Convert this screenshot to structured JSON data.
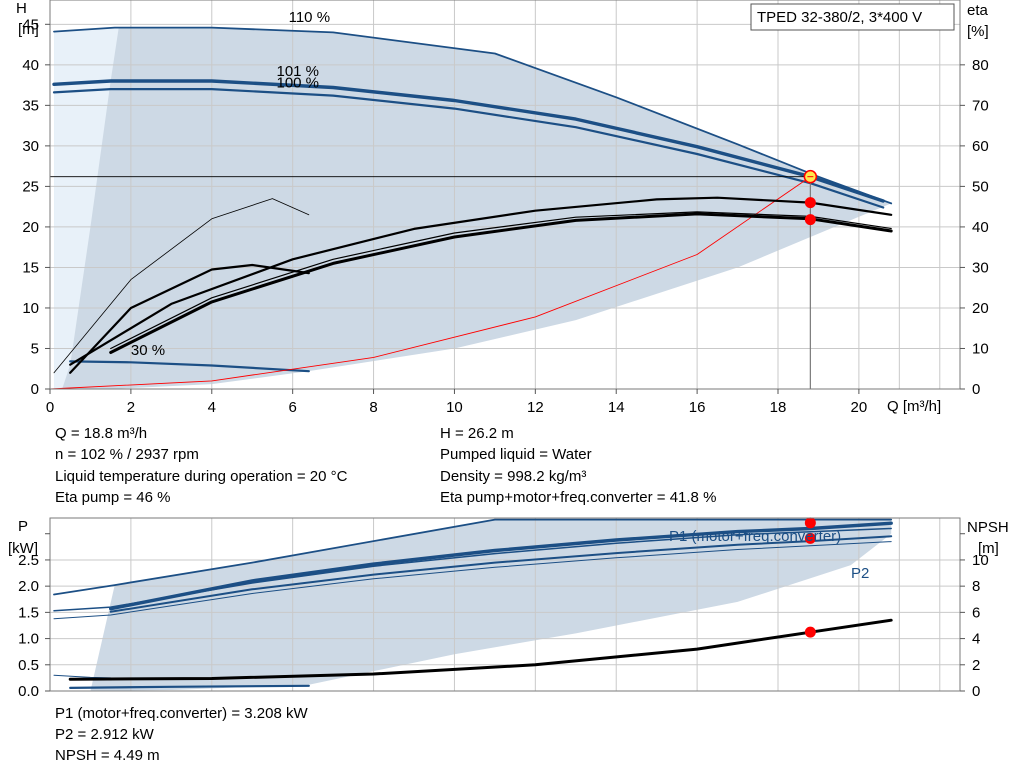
{
  "chart_data": [
    {
      "type": "line",
      "title": "TPED 32-380/2, 3*400 V",
      "xlabel": "Q [m³/h]",
      "ylabel_left": [
        "H",
        "[m]"
      ],
      "ylabel_right": [
        "eta",
        "[%]"
      ],
      "xlim": [
        0,
        22.5
      ],
      "ylim_left": [
        0,
        48
      ],
      "ylim_right": [
        0,
        96
      ],
      "xticks": [
        0,
        2,
        4,
        6,
        8,
        10,
        12,
        14,
        16,
        18,
        20
      ],
      "yticks_left": [
        0,
        5,
        10,
        15,
        20,
        25,
        30,
        35,
        40,
        45
      ],
      "yticks_right": [
        0,
        10,
        20,
        30,
        40,
        50,
        60,
        70,
        80
      ],
      "grid": true,
      "series": [
        {
          "key": "h110",
          "name": "110 %",
          "role": "head",
          "width": 1.8,
          "x": [
            0.1,
            1.6,
            4,
            7,
            11,
            14,
            17,
            19,
            20.8
          ],
          "y": [
            44.1,
            44.6,
            44.6,
            44.0,
            41.4,
            36.0,
            30.2,
            26.2,
            22.9
          ]
        },
        {
          "key": "h101",
          "name": "101 %",
          "role": "head",
          "width": 3.4,
          "x": [
            0.1,
            1.5,
            4,
            7,
            10,
            13,
            16,
            18.8,
            20.6
          ],
          "y": [
            37.6,
            38.0,
            38.0,
            37.2,
            35.6,
            33.3,
            29.9,
            26.2,
            23.2
          ]
        },
        {
          "key": "h100",
          "name": "100 %",
          "role": "head",
          "width": 2.2,
          "x": [
            0.1,
            1.5,
            4,
            7,
            10,
            13,
            16,
            18.8,
            20.6
          ],
          "y": [
            36.6,
            37.0,
            37.0,
            36.2,
            34.6,
            32.3,
            29.0,
            25.4,
            22.4
          ]
        },
        {
          "key": "h30",
          "name": "30 %",
          "role": "head",
          "width": 2.2,
          "x": [
            0.5,
            2,
            4,
            6.4
          ],
          "y": [
            3.4,
            3.3,
            2.9,
            2.2
          ]
        },
        {
          "key": "sys",
          "name": "",
          "role": "system",
          "width": 0.9,
          "x": [
            0,
            4,
            8,
            12,
            16,
            18.8
          ],
          "y": [
            0,
            1.0,
            3.9,
            8.9,
            16.6,
            26.2
          ]
        },
        {
          "key": "e110",
          "name": "",
          "role": "eta",
          "width": 0.8,
          "x": [
            0.1,
            2,
            4,
            5.5,
            6.4
          ],
          "y": [
            4.0,
            27.0,
            42.0,
            47.0,
            43.0
          ]
        },
        {
          "key": "e30",
          "name": "",
          "role": "eta",
          "width": 2.2,
          "x": [
            0.5,
            2,
            4,
            5,
            6.4
          ],
          "y": [
            4.0,
            20.0,
            29.5,
            30.6,
            28.6
          ]
        },
        {
          "key": "e101",
          "name": "",
          "role": "eta",
          "width": 2.2,
          "x": [
            0.5,
            3,
            6,
            9,
            12,
            15,
            16.5,
            18.8,
            20.8
          ],
          "y": [
            6.0,
            21.0,
            32.0,
            39.5,
            44.0,
            46.8,
            47.2,
            46.0,
            43.0
          ]
        },
        {
          "key": "e100",
          "name": "",
          "role": "eta",
          "width": 3.0,
          "x": [
            1.5,
            4,
            7,
            10,
            13,
            16,
            18.8,
            20.8
          ],
          "y": [
            9.0,
            21.5,
            31.0,
            37.5,
            41.6,
            43.2,
            42.0,
            39.0
          ]
        },
        {
          "key": "e100b",
          "name": "",
          "role": "eta",
          "width": 1.2,
          "x": [
            1.5,
            4,
            7,
            10,
            13,
            16,
            18.8,
            20.8
          ],
          "y": [
            10.0,
            22.5,
            32.0,
            38.5,
            42.4,
            43.7,
            42.6,
            39.6
          ]
        }
      ],
      "vline": {
        "x": 18.8
      },
      "hline": {
        "y": 26.2
      },
      "points": [
        {
          "key": "duty",
          "x": 18.8,
          "y": 26.2,
          "axis": "left",
          "style": "duty"
        },
        {
          "key": "eta_pump",
          "x": 18.8,
          "y": 46.0,
          "axis": "right",
          "style": "red"
        },
        {
          "key": "eta_total",
          "x": 18.8,
          "y": 41.8,
          "axis": "right",
          "style": "red"
        }
      ],
      "labels": [
        {
          "key": "l110",
          "text": "110 %",
          "x": 5.9,
          "y": 45.3
        },
        {
          "key": "l101",
          "text": "101 %",
          "x": 5.6,
          "y": 38.6
        },
        {
          "key": "l100",
          "text": "100 %",
          "x": 5.6,
          "y": 37.2
        },
        {
          "key": "l30",
          "text": "30 %",
          "x": 2.0,
          "y": 4.2
        }
      ]
    },
    {
      "type": "line",
      "ylabel_left": [
        "P",
        "[kW]"
      ],
      "ylabel_right": [
        "NPSH",
        "[m]"
      ],
      "xlim": [
        0,
        22.5
      ],
      "ylim_left": [
        0,
        3.3
      ],
      "ylim_right": [
        0,
        13.2
      ],
      "yticks_left": [
        0,
        0.5,
        1.0,
        1.5,
        2.0,
        2.5
      ],
      "yticks_left_labels": [
        "0.0",
        "0.5",
        "1.0",
        "1.5",
        "2.0",
        "2.5"
      ],
      "yticks_right": [
        0,
        2,
        4,
        6,
        8,
        10
      ],
      "grid": true,
      "series": [
        {
          "key": "p1_110",
          "name": "",
          "role": "power",
          "width": 1.8,
          "x": [
            0.1,
            1.6,
            5,
            11,
            16,
            20.8
          ],
          "y": [
            1.84,
            2.02,
            2.45,
            3.27,
            3.27,
            3.27
          ]
        },
        {
          "key": "p1_101",
          "name": "P1 (motor+freq.converter)",
          "role": "power",
          "width": 3.4,
          "x": [
            1.5,
            5,
            8,
            11,
            14,
            17,
            18.8,
            20.8
          ],
          "y": [
            1.57,
            2.1,
            2.42,
            2.68,
            2.88,
            3.04,
            3.1,
            3.2
          ]
        },
        {
          "key": "p1_100",
          "name": "",
          "role": "power",
          "width": 1.5,
          "x": [
            0.1,
            1.5,
            5,
            8,
            11,
            14,
            17,
            20.8
          ],
          "y": [
            1.53,
            1.6,
            2.06,
            2.38,
            2.62,
            2.82,
            2.98,
            3.1
          ]
        },
        {
          "key": "p2_101",
          "name": "P2",
          "role": "power",
          "width": 2.0,
          "x": [
            1.5,
            5,
            8,
            11,
            14,
            17,
            18.8,
            20.8
          ],
          "y": [
            1.51,
            1.94,
            2.22,
            2.45,
            2.63,
            2.79,
            2.86,
            2.95
          ]
        },
        {
          "key": "p2_100",
          "name": "",
          "role": "power",
          "width": 1.0,
          "x": [
            0.1,
            1.5,
            5,
            8,
            11,
            14,
            17,
            20.8
          ],
          "y": [
            1.38,
            1.45,
            1.86,
            2.14,
            2.36,
            2.54,
            2.7,
            2.85
          ]
        },
        {
          "key": "p1_30",
          "name": "",
          "role": "power",
          "width": 2.2,
          "x": [
            0.5,
            3,
            6.4
          ],
          "y": [
            0.06,
            0.08,
            0.1
          ]
        },
        {
          "key": "p_30b",
          "name": "",
          "role": "power",
          "width": 1.0,
          "x": [
            0.1,
            1.0,
            1.5
          ],
          "y": [
            0.3,
            0.26,
            0.25
          ]
        },
        {
          "key": "npsh",
          "name": "",
          "role": "npsh",
          "width": 3.0,
          "x": [
            0.5,
            4,
            8,
            12,
            16,
            18.8,
            20.8
          ],
          "y": [
            0.9,
            0.95,
            1.3,
            2.0,
            3.2,
            4.49,
            5.4
          ]
        }
      ],
      "points": [
        {
          "key": "p1_pt",
          "x": 18.8,
          "y": 3.208,
          "axis": "left",
          "style": "red"
        },
        {
          "key": "p2_pt",
          "x": 18.8,
          "y": 2.912,
          "axis": "left",
          "style": "red"
        },
        {
          "key": "npsh_pt",
          "x": 18.8,
          "y": 4.49,
          "axis": "right",
          "style": "red"
        }
      ]
    }
  ],
  "info": {
    "q": "Q = 18.8 m³/h",
    "h": "H = 26.2 m",
    "n": "n = 102 % / 2937 rpm",
    "liquid": "Pumped liquid = Water",
    "temp": "Liquid temperature during operation = 20 °C",
    "density": "Density = 998.2 kg/m³",
    "eta_pump": "Eta pump = 46 %",
    "eta_total": "Eta pump+motor+freq.converter = 41.8 %",
    "p1": "P1 (motor+freq.converter) = 3.208 kW",
    "p2": "P2 = 2.912 kW",
    "npsh": "NPSH = 4.49 m"
  },
  "colors": {
    "curve_blue": "#1c4f85",
    "band_fill": "#cdd9e5",
    "light_fill": "#e8f1f9",
    "red": "#ff0000",
    "eta_black": "#000000",
    "duty_yellow": "#ffe84d",
    "grid": "#c9c9c9"
  }
}
